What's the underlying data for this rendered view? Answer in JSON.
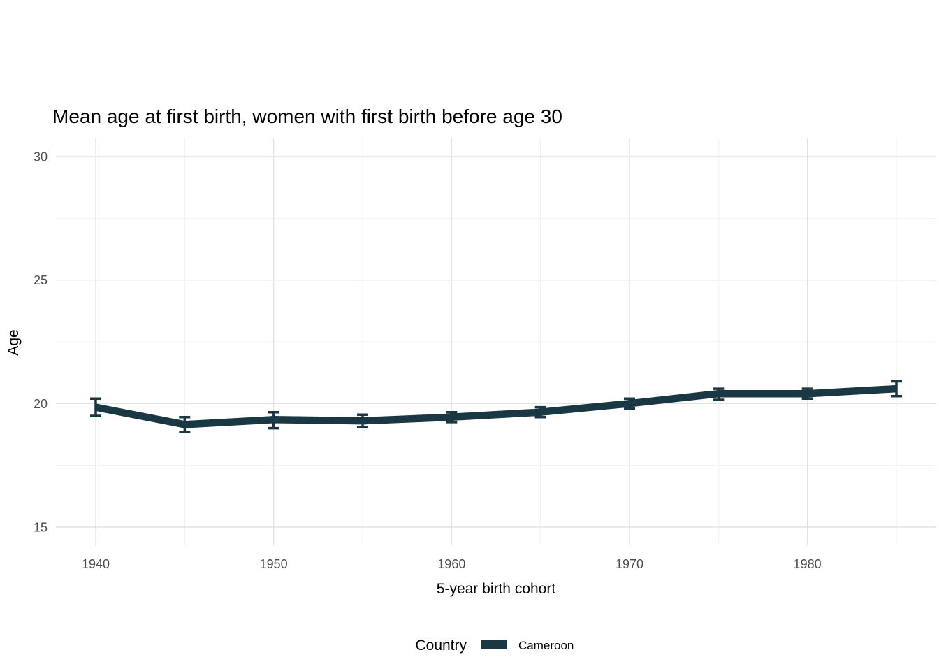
{
  "chart_data": {
    "type": "line",
    "title": "Mean age at first birth, women with first birth before age 30",
    "xlabel": "5-year birth cohort",
    "ylabel": "Age",
    "x": [
      1940,
      1945,
      1950,
      1955,
      1960,
      1965,
      1970,
      1975,
      1980,
      1985
    ],
    "series": [
      {
        "name": "Cameroon",
        "color": "#1a3844",
        "values": [
          19.85,
          19.15,
          19.35,
          19.3,
          19.45,
          19.65,
          20.0,
          20.4,
          20.4,
          20.6
        ],
        "ci_low": [
          19.5,
          18.85,
          19.0,
          19.05,
          19.25,
          19.45,
          19.8,
          20.15,
          20.2,
          20.3
        ],
        "ci_high": [
          20.2,
          19.45,
          19.65,
          19.55,
          19.65,
          19.85,
          20.2,
          20.6,
          20.6,
          20.9
        ]
      }
    ],
    "x_ticks": [
      1940,
      1950,
      1960,
      1970,
      1980
    ],
    "x_minor": [
      1945,
      1955,
      1965,
      1975,
      1985
    ],
    "y_ticks": [
      15,
      20,
      25,
      30
    ],
    "y_minor": [
      17.5,
      22.5,
      27.5
    ],
    "xlim": [
      1937.75,
      1987.25
    ],
    "ylim": [
      14.25,
      30.75
    ],
    "grid": {
      "on": true,
      "major_color": "#e3e3e3",
      "minor_color": "#efefef"
    },
    "tick_label_color": "#4d4d4d",
    "legend": {
      "position": "bottom",
      "title": "Country",
      "entries": [
        {
          "label": "Cameroon",
          "color": "#1a3844"
        }
      ]
    }
  }
}
